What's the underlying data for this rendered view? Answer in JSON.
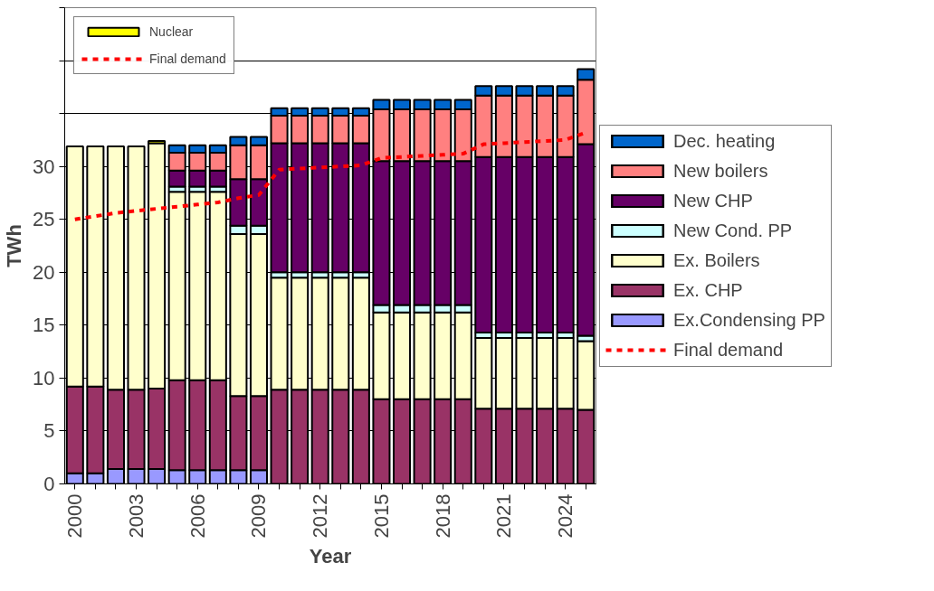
{
  "chart_data": {
    "type": "bar",
    "stacked": true,
    "xlabel": "Year",
    "ylabel": "TWh",
    "categories": [
      "2000",
      null,
      null,
      "2003",
      null,
      null,
      "2006",
      null,
      null,
      "2009",
      null,
      null,
      "2012",
      null,
      null,
      "2015",
      null,
      null,
      "2018",
      null,
      null,
      "2021",
      null,
      null,
      "2024",
      null
    ],
    "ylim": [
      0,
      45
    ],
    "yticks": [
      0,
      5,
      10,
      15,
      20,
      25,
      30,
      {
        "value": 35,
        "label": null
      },
      {
        "value": 40,
        "label": null
      },
      {
        "value": 45,
        "label": null
      }
    ],
    "grid": "y",
    "legend": "right",
    "series": [
      {
        "name": "Ex.Condensing PP",
        "color": "#9999ff",
        "values": [
          1.0,
          1.0,
          1.4,
          1.4,
          1.4,
          1.3,
          1.3,
          1.3,
          1.3,
          1.3,
          null,
          null,
          null,
          null,
          null,
          null,
          null,
          null,
          null,
          null,
          null,
          null,
          null,
          null,
          null,
          null
        ]
      },
      {
        "name": "Ex. CHP",
        "color": "#993366",
        "values": [
          8.2,
          8.2,
          7.5,
          7.5,
          7.6,
          8.5,
          8.5,
          8.5,
          7.0,
          7.0,
          8.9,
          8.9,
          8.9,
          8.9,
          8.9,
          8.0,
          8.0,
          8.0,
          8.0,
          8.0,
          7.1,
          7.1,
          7.1,
          7.1,
          7.1,
          7.0
        ]
      },
      {
        "name": "Ex. Boilers",
        "color": "#ffffcc",
        "values": [
          22.7,
          22.7,
          23.0,
          23.0,
          23.2,
          17.8,
          17.8,
          17.8,
          15.3,
          15.3,
          10.6,
          10.6,
          10.6,
          10.6,
          10.6,
          8.2,
          8.2,
          8.2,
          8.2,
          8.2,
          6.7,
          6.7,
          6.7,
          6.7,
          6.7,
          6.5
        ]
      },
      {
        "name": "New Cond. PP",
        "color": "#ccffff",
        "values": [
          null,
          null,
          null,
          null,
          null,
          0.5,
          0.5,
          0.5,
          0.8,
          0.8,
          0.5,
          0.5,
          0.5,
          0.5,
          0.5,
          0.7,
          0.7,
          0.7,
          0.7,
          0.7,
          0.5,
          0.5,
          0.5,
          0.5,
          0.5,
          0.5
        ]
      },
      {
        "name": "New CHP",
        "color": "#660066",
        "values": [
          null,
          null,
          null,
          null,
          null,
          1.5,
          1.5,
          1.5,
          4.4,
          4.4,
          12.2,
          12.2,
          12.2,
          12.2,
          12.2,
          13.6,
          13.6,
          13.6,
          13.6,
          13.6,
          16.6,
          16.6,
          16.6,
          16.6,
          16.6,
          18.1
        ]
      },
      {
        "name": "New boilers",
        "color": "#ff8080",
        "values": [
          null,
          null,
          null,
          null,
          null,
          1.7,
          1.7,
          1.7,
          3.2,
          3.2,
          2.6,
          2.6,
          2.6,
          2.6,
          2.6,
          4.9,
          4.9,
          4.9,
          4.9,
          4.9,
          5.8,
          5.8,
          5.8,
          5.8,
          5.8,
          6.1
        ]
      },
      {
        "name": "Dec. heating",
        "color": "#0066cc",
        "values": [
          null,
          null,
          null,
          null,
          null,
          0.7,
          0.7,
          0.7,
          0.8,
          0.8,
          0.7,
          0.7,
          0.7,
          0.7,
          0.7,
          0.9,
          0.9,
          0.9,
          0.9,
          0.9,
          0.9,
          0.9,
          0.9,
          0.9,
          0.9,
          1.0
        ]
      },
      {
        "name": "Nuclear",
        "color": "#ffff00",
        "values": [
          null,
          null,
          null,
          null,
          0.2,
          null,
          null,
          null,
          null,
          null,
          null,
          null,
          null,
          null,
          null,
          null,
          null,
          null,
          null,
          null,
          null,
          null,
          null,
          null,
          null,
          null
        ]
      },
      {
        "name": "Final demand",
        "type": "line",
        "color": "#ff0000",
        "line_style": "dashed",
        "values": [
          25.0,
          25.3,
          25.6,
          25.8,
          26.0,
          26.2,
          26.4,
          26.6,
          27.0,
          27.3,
          29.7,
          29.8,
          29.9,
          30.0,
          30.1,
          30.8,
          30.9,
          31.0,
          31.1,
          31.2,
          32.1,
          32.2,
          32.3,
          32.4,
          32.5,
          33.2
        ]
      }
    ]
  }
}
